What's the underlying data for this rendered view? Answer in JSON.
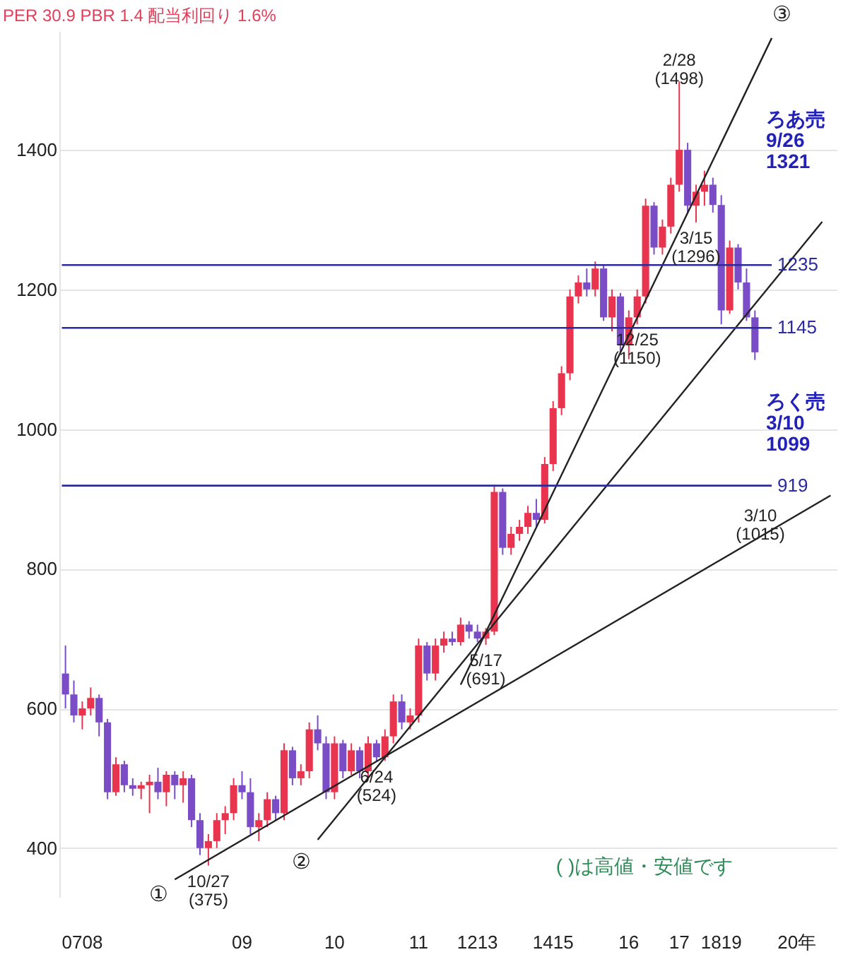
{
  "chart_data": {
    "type": "candlestick",
    "title": "PER 30.9 PBR 1.4 配当利回り 1.6%",
    "categories": [
      null,
      null,
      "0708",
      null,
      null,
      null,
      null,
      null,
      null,
      null,
      null,
      null,
      null,
      null,
      null,
      null,
      null,
      null,
      null,
      null,
      null,
      "09",
      null,
      null,
      null,
      null,
      null,
      null,
      null,
      null,
      null,
      null,
      "10",
      null,
      null,
      null,
      null,
      null,
      null,
      null,
      null,
      null,
      "11",
      null,
      null,
      null,
      null,
      null,
      null,
      "1213",
      null,
      null,
      null,
      null,
      null,
      null,
      null,
      null,
      "1415",
      null,
      null,
      null,
      null,
      null,
      null,
      null,
      null,
      "16",
      null,
      null,
      null,
      null,
      null,
      "17",
      null,
      null,
      null,
      null,
      "1819",
      null,
      null,
      null,
      null,
      null,
      null,
      null,
      null,
      "20年",
      null,
      null,
      null,
      null
    ],
    "ohlc": [
      [
        650,
        690,
        600,
        620
      ],
      [
        620,
        640,
        580,
        590
      ],
      [
        590,
        610,
        570,
        600
      ],
      [
        600,
        630,
        590,
        615
      ],
      [
        615,
        620,
        560,
        580
      ],
      [
        580,
        585,
        470,
        480
      ],
      [
        480,
        530,
        475,
        520
      ],
      [
        520,
        525,
        480,
        490
      ],
      [
        490,
        500,
        475,
        485
      ],
      [
        485,
        495,
        470,
        490
      ],
      [
        490,
        505,
        450,
        495
      ],
      [
        495,
        515,
        470,
        480
      ],
      [
        480,
        510,
        460,
        505
      ],
      [
        505,
        510,
        470,
        490
      ],
      [
        490,
        510,
        465,
        500
      ],
      [
        500,
        505,
        430,
        440
      ],
      [
        440,
        450,
        390,
        400
      ],
      [
        400,
        420,
        375,
        410
      ],
      [
        410,
        450,
        400,
        440
      ],
      [
        440,
        460,
        420,
        450
      ],
      [
        450,
        500,
        440,
        490
      ],
      [
        490,
        510,
        470,
        480
      ],
      [
        480,
        500,
        420,
        430
      ],
      [
        430,
        450,
        410,
        440
      ],
      [
        440,
        480,
        430,
        470
      ],
      [
        470,
        475,
        440,
        450
      ],
      [
        450,
        550,
        440,
        540
      ],
      [
        540,
        545,
        490,
        500
      ],
      [
        500,
        520,
        490,
        510
      ],
      [
        510,
        580,
        500,
        570
      ],
      [
        570,
        590,
        540,
        550
      ],
      [
        550,
        560,
        470,
        480
      ],
      [
        480,
        560,
        470,
        550
      ],
      [
        550,
        555,
        500,
        510
      ],
      [
        510,
        550,
        505,
        540
      ],
      [
        540,
        545,
        500,
        510
      ],
      [
        510,
        560,
        500,
        550
      ],
      [
        550,
        555,
        524,
        530
      ],
      [
        530,
        570,
        525,
        560
      ],
      [
        560,
        620,
        550,
        610
      ],
      [
        610,
        620,
        570,
        580
      ],
      [
        580,
        600,
        570,
        590
      ],
      [
        590,
        700,
        580,
        690
      ],
      [
        690,
        695,
        640,
        650
      ],
      [
        650,
        700,
        640,
        690
      ],
      [
        690,
        710,
        680,
        700
      ],
      [
        700,
        710,
        690,
        695
      ],
      [
        695,
        730,
        690,
        720
      ],
      [
        720,
        725,
        700,
        710
      ],
      [
        710,
        720,
        695,
        700
      ],
      [
        700,
        715,
        691,
        710
      ],
      [
        710,
        920,
        705,
        910
      ],
      [
        910,
        915,
        820,
        830
      ],
      [
        830,
        860,
        820,
        850
      ],
      [
        850,
        870,
        840,
        860
      ],
      [
        860,
        890,
        850,
        880
      ],
      [
        880,
        900,
        860,
        870
      ],
      [
        870,
        960,
        865,
        950
      ],
      [
        950,
        1040,
        940,
        1030
      ],
      [
        1030,
        1090,
        1020,
        1080
      ],
      [
        1080,
        1200,
        1070,
        1190
      ],
      [
        1190,
        1220,
        1180,
        1210
      ],
      [
        1210,
        1230,
        1190,
        1200
      ],
      [
        1200,
        1240,
        1190,
        1230
      ],
      [
        1230,
        1235,
        1155,
        1160
      ],
      [
        1160,
        1200,
        1140,
        1190
      ],
      [
        1190,
        1195,
        1110,
        1120
      ],
      [
        1120,
        1170,
        1100,
        1160
      ],
      [
        1160,
        1200,
        1150,
        1190
      ],
      [
        1190,
        1330,
        1180,
        1320
      ],
      [
        1320,
        1325,
        1250,
        1260
      ],
      [
        1260,
        1300,
        1250,
        1290
      ],
      [
        1290,
        1360,
        1280,
        1350
      ],
      [
        1350,
        1498,
        1340,
        1400
      ],
      [
        1400,
        1410,
        1310,
        1320
      ],
      [
        1320,
        1350,
        1296,
        1340
      ],
      [
        1340,
        1370,
        1320,
        1350
      ],
      [
        1350,
        1360,
        1310,
        1321
      ],
      [
        1321,
        1335,
        1150,
        1170
      ],
      [
        1170,
        1270,
        1165,
        1260
      ],
      [
        1260,
        1265,
        1200,
        1210
      ],
      [
        1210,
        1230,
        1155,
        1160
      ],
      [
        1160,
        1170,
        1099,
        1110
      ],
      null,
      null,
      null,
      null,
      null,
      null,
      null,
      null,
      null
    ],
    "colors": [
      "#7a4cc6",
      "#7a4cc6",
      "#e8344e",
      "#e8344e",
      "#7a4cc6",
      "#7a4cc6",
      "#e8344e",
      "#7a4cc6",
      "#7a4cc6",
      "#e8344e",
      "#e8344e",
      "#7a4cc6",
      "#e8344e",
      "#7a4cc6",
      "#e8344e",
      "#7a4cc6",
      "#7a4cc6",
      "#e8344e",
      "#e8344e",
      "#e8344e",
      "#e8344e",
      "#7a4cc6",
      "#7a4cc6",
      "#e8344e",
      "#e8344e",
      "#7a4cc6",
      "#e8344e",
      "#7a4cc6",
      "#e8344e",
      "#e8344e",
      "#7a4cc6",
      "#7a4cc6",
      "#e8344e",
      "#7a4cc6",
      "#e8344e",
      "#7a4cc6",
      "#e8344e",
      "#7a4cc6",
      "#e8344e",
      "#e8344e",
      "#7a4cc6",
      "#e8344e",
      "#e8344e",
      "#7a4cc6",
      "#e8344e",
      "#e8344e",
      "#7a4cc6",
      "#e8344e",
      "#7a4cc6",
      "#7a4cc6",
      "#e8344e",
      "#e8344e",
      "#7a4cc6",
      "#e8344e",
      "#e8344e",
      "#e8344e",
      "#7a4cc6",
      "#e8344e",
      "#e8344e",
      "#e8344e",
      "#e8344e",
      "#e8344e",
      "#7a4cc6",
      "#e8344e",
      "#7a4cc6",
      "#e8344e",
      "#7a4cc6",
      "#e8344e",
      "#e8344e",
      "#e8344e",
      "#7a4cc6",
      "#e8344e",
      "#e8344e",
      "#e8344e",
      "#7a4cc6",
      "#e8344e",
      "#e8344e",
      "#7a4cc6",
      "#7a4cc6",
      "#e8344e",
      "#7a4cc6",
      "#7a4cc6",
      "#7a4cc6",
      null,
      null,
      null,
      null,
      null,
      null,
      null,
      null,
      null
    ],
    "series": [
      {
        "type": "line",
        "color": "#222222",
        "values": [
          null,
          null,
          null,
          null,
          null,
          null,
          null,
          null,
          null,
          null,
          null,
          null,
          null,
          355,
          null,
          null,
          null,
          null,
          null,
          null,
          null,
          null,
          null,
          null,
          null,
          null,
          null,
          null,
          null,
          null,
          null,
          null,
          null,
          null,
          null,
          null,
          null,
          null,
          null,
          null,
          null,
          null,
          null,
          null,
          null,
          null,
          null,
          null,
          null,
          null,
          null,
          null,
          null,
          null,
          null,
          null,
          null,
          null,
          null,
          null,
          null,
          null,
          null,
          null,
          null,
          null,
          null,
          null,
          null,
          null,
          null,
          null,
          null,
          null,
          null,
          null,
          null,
          null,
          null,
          null,
          null,
          null,
          null,
          null,
          null,
          null,
          null,
          null,
          null,
          null,
          null,
          905
        ]
      },
      {
        "type": "line",
        "color": "#222222",
        "values": [
          null,
          null,
          null,
          null,
          null,
          null,
          null,
          null,
          null,
          null,
          null,
          null,
          null,
          null,
          null,
          null,
          null,
          null,
          null,
          null,
          null,
          null,
          null,
          null,
          null,
          null,
          null,
          null,
          null,
          null,
          412,
          null,
          null,
          null,
          null,
          null,
          null,
          null,
          null,
          null,
          null,
          null,
          null,
          null,
          null,
          null,
          null,
          null,
          null,
          null,
          null,
          null,
          null,
          null,
          null,
          null,
          null,
          null,
          null,
          null,
          null,
          null,
          null,
          null,
          null,
          null,
          null,
          null,
          null,
          null,
          null,
          null,
          null,
          null,
          null,
          null,
          null,
          null,
          null,
          null,
          null,
          null,
          null,
          null,
          null,
          null,
          null,
          null,
          null,
          null,
          1297,
          null
        ]
      },
      {
        "type": "line",
        "color": "#222222",
        "values": [
          null,
          null,
          null,
          null,
          null,
          null,
          null,
          null,
          null,
          null,
          null,
          null,
          null,
          null,
          null,
          null,
          null,
          null,
          null,
          null,
          null,
          null,
          null,
          null,
          null,
          null,
          null,
          null,
          null,
          null,
          null,
          null,
          null,
          null,
          null,
          null,
          null,
          null,
          null,
          null,
          null,
          null,
          null,
          null,
          null,
          null,
          null,
          634,
          null,
          null,
          null,
          null,
          null,
          null,
          null,
          null,
          null,
          null,
          null,
          null,
          null,
          null,
          null,
          null,
          null,
          null,
          null,
          null,
          null,
          null,
          null,
          null,
          null,
          null,
          null,
          null,
          null,
          null,
          null,
          null,
          null,
          null,
          null,
          null,
          1560,
          null,
          null,
          null,
          null,
          null,
          null,
          null
        ]
      }
    ],
    "ref_lines": [
      {
        "axis": "y",
        "value": 1235,
        "label": "1235",
        "color": "#2b2b9e"
      },
      {
        "axis": "y",
        "value": 1145,
        "label": "1145",
        "color": "#2b2b9e"
      },
      {
        "axis": "y",
        "value": 919,
        "label": "919",
        "color": "#2b2b9e"
      }
    ],
    "annotations": [
      {
        "text": "2/28\n(1498)",
        "y": 1498
      },
      {
        "text": "3/15\n(1296)",
        "y": 1296
      },
      {
        "text": "12/25\n(1150)",
        "y": 1150
      },
      {
        "text": "10/27\n(375)",
        "y": 375
      },
      {
        "text": "6/24\n(524)",
        "y": 524
      },
      {
        "text": "5/17\n(691)",
        "y": 691
      },
      "ろあ売\n9/26\n1321",
      "ろく売\n3/10\n1099",
      "3/10\n(1015)",
      "①",
      "②",
      "③",
      "( )は高値・安値です"
    ],
    "ylim": [
      330,
      1570
    ],
    "yticks": [
      400,
      600,
      800,
      1000,
      1200,
      1400
    ],
    "grid": "y"
  }
}
